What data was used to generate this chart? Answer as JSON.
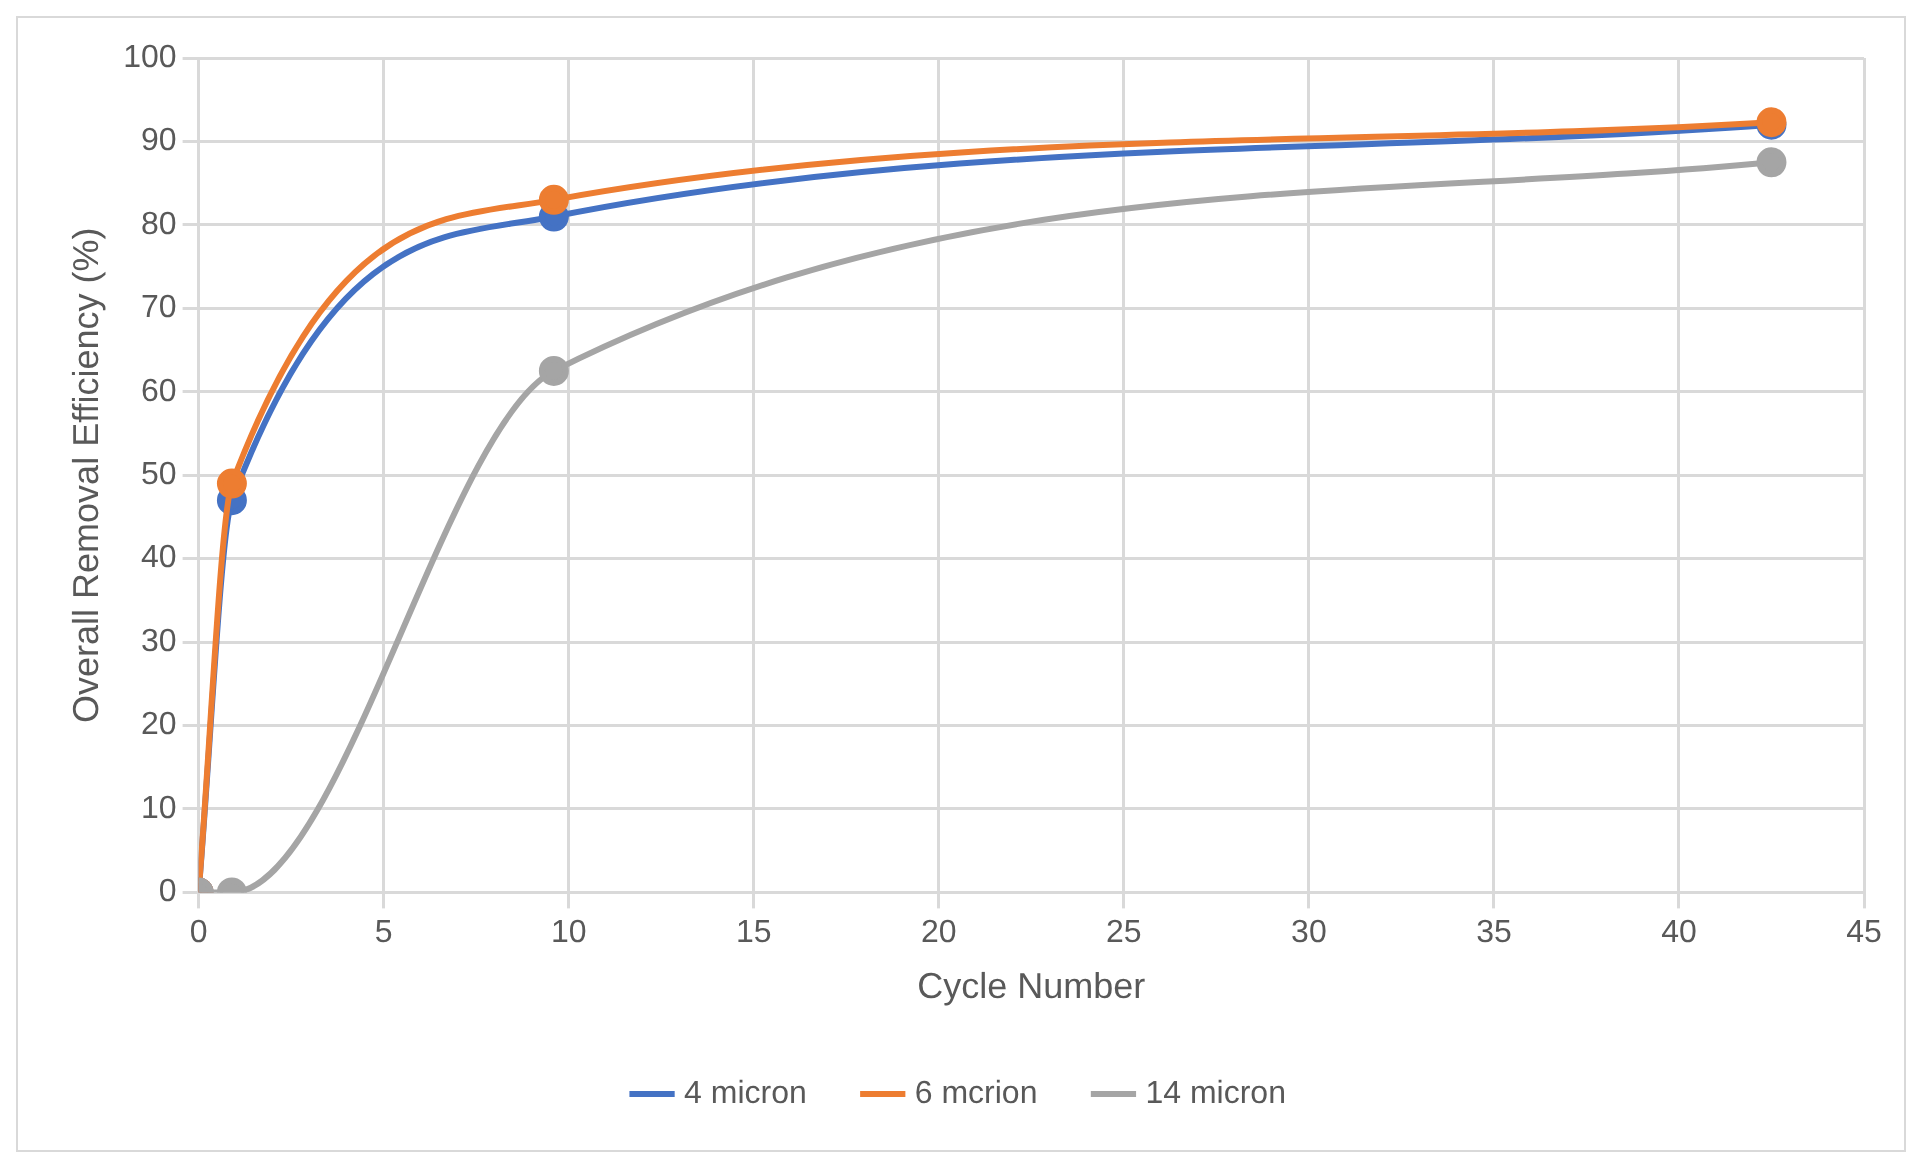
{
  "chart_data": {
    "type": "line",
    "xlabel": "Cycle Number",
    "ylabel": "Overall Removal Efficiency (%)",
    "x": [
      0,
      0.9,
      9.6,
      42.5
    ],
    "series": [
      {
        "name": "4 micron",
        "color": "#4472c4",
        "values": [
          0,
          47,
          81,
          92
        ]
      },
      {
        "name": "6 mcrion",
        "color": "#ed7d31",
        "values": [
          0,
          49,
          83,
          92.3
        ]
      },
      {
        "name": "14 micron",
        "color": "#a5a5a5",
        "values": [
          0,
          0,
          62.5,
          87.5
        ]
      }
    ],
    "xlim": [
      0,
      45
    ],
    "xticks": [
      0,
      5,
      10,
      15,
      20,
      25,
      30,
      35,
      40,
      45
    ],
    "ylim": [
      0,
      100
    ],
    "yticks": [
      0,
      10,
      20,
      30,
      40,
      50,
      60,
      70,
      80,
      90,
      100
    ],
    "grid": true,
    "legend": "bottom",
    "marker": "circle",
    "line_style": "solid"
  }
}
